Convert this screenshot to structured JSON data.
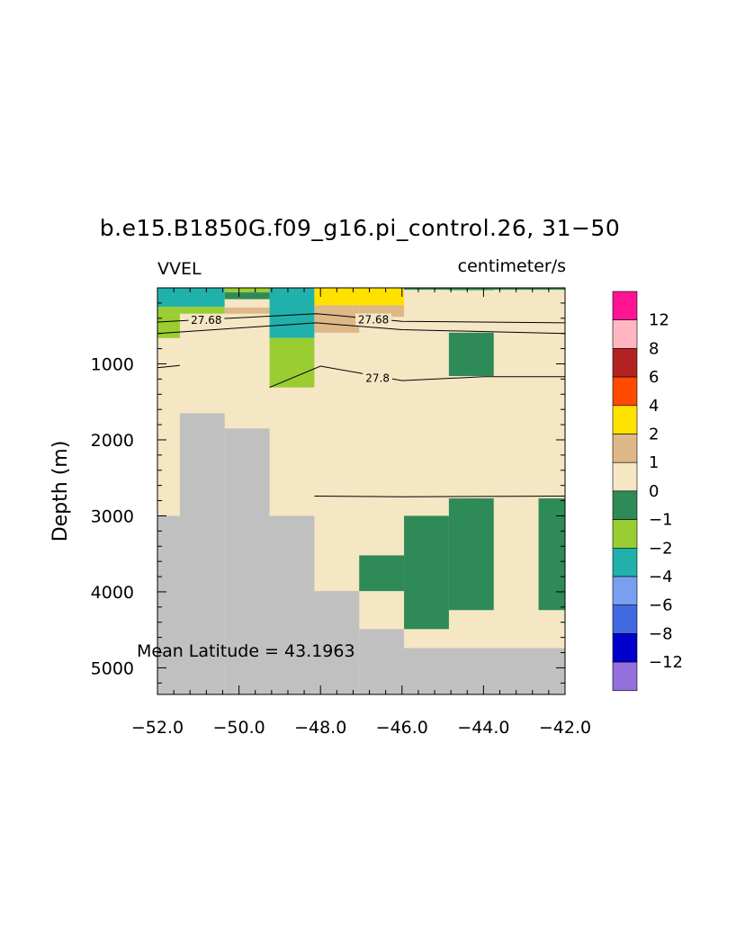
{
  "colors": {
    "0_1": "#F5E6C4",
    "1_2": "#DEB887",
    "2_4": "#FFE100",
    "4_6": "#FF4A00",
    "6_8": "#B22222",
    "8_12": "#FFB6C1",
    "12_up": "#FF1493",
    "m1_0": "#2E8B57",
    "m2_m1": "#9ACD32",
    "m4_m2": "#20B2AA",
    "m6_m4": "#7B9FF0",
    "m8_m6": "#4169E1",
    "m12_m8": "#0000CD",
    "below_m12": "#9370DB",
    "land": "#C0C0C0"
  },
  "chart_data": {
    "type": "heatmap",
    "title": "b.e15.B1850G.f09_g16.pi_control.26, 31−50",
    "left_label": "VVEL",
    "right_label": "centimeter/s",
    "xlabel": "",
    "ylabel": "Depth (m)",
    "xlim": [
      -52.0,
      -42.0
    ],
    "ylim": [
      5350,
      0
    ],
    "x_ticks": [
      "−52.0",
      "−50.0",
      "−48.0",
      "−46.0",
      "−44.0",
      "−42.0"
    ],
    "x_tick_values": [
      -52,
      -50,
      -48,
      -46,
      -44,
      -42
    ],
    "y_ticks": [
      "1000",
      "2000",
      "3000",
      "4000",
      "5000"
    ],
    "y_tick_values": [
      1000,
      2000,
      3000,
      4000,
      5000
    ],
    "background_color_key": "0_1",
    "land": [
      {
        "x": [
          -52.0,
          -51.45
        ],
        "y": [
          3000,
          5350
        ]
      },
      {
        "x": [
          -51.45,
          -50.35
        ],
        "y": [
          1650,
          5350
        ]
      },
      {
        "x": [
          -50.35,
          -49.25
        ],
        "y": [
          1850,
          5350
        ]
      },
      {
        "x": [
          -49.25,
          -48.15
        ],
        "y": [
          3000,
          5350
        ]
      },
      {
        "x": [
          -48.15,
          -47.05
        ],
        "y": [
          3990,
          5350
        ]
      },
      {
        "x": [
          -47.05,
          -45.95
        ],
        "y": [
          4490,
          5350
        ]
      },
      {
        "x": [
          -45.95,
          -42.0
        ],
        "y": [
          4740,
          5350
        ]
      }
    ],
    "cells": [
      {
        "x": [
          -52.0,
          -50.35
        ],
        "y": [
          0,
          250
        ],
        "c": "m4_m2"
      },
      {
        "x": [
          -52.0,
          -51.45
        ],
        "y": [
          250,
          360
        ],
        "c": "m2_m1"
      },
      {
        "x": [
          -51.45,
          -50.35
        ],
        "y": [
          250,
          340
        ],
        "c": "m2_m1"
      },
      {
        "x": [
          -52.0,
          -51.45
        ],
        "y": [
          360,
          660
        ],
        "c": "m2_m1"
      },
      {
        "x": [
          -50.35,
          -49.25
        ],
        "y": [
          0,
          60
        ],
        "c": "m2_m1"
      },
      {
        "x": [
          -50.35,
          -49.25
        ],
        "y": [
          60,
          150
        ],
        "c": "m1_0"
      },
      {
        "x": [
          -50.35,
          -49.25
        ],
        "y": [
          150,
          260
        ],
        "c": "0_1"
      },
      {
        "x": [
          -50.35,
          -49.25
        ],
        "y": [
          260,
          340
        ],
        "c": "1_2"
      },
      {
        "x": [
          -49.25,
          -48.15
        ],
        "y": [
          0,
          660
        ],
        "c": "m4_m2"
      },
      {
        "x": [
          -49.25,
          -48.15
        ],
        "y": [
          660,
          1310
        ],
        "c": "m2_m1"
      },
      {
        "x": [
          -48.15,
          -45.95
        ],
        "y": [
          0,
          230
        ],
        "c": "2_4"
      },
      {
        "x": [
          -48.15,
          -47.05
        ],
        "y": [
          230,
          590
        ],
        "c": "1_2"
      },
      {
        "x": [
          -47.05,
          -45.95
        ],
        "y": [
          230,
          380
        ],
        "c": "1_2"
      },
      {
        "x": [
          -45.95,
          -42.0
        ],
        "y": [
          0,
          25
        ],
        "c": "m1_0"
      },
      {
        "x": [
          -44.85,
          -43.75
        ],
        "y": [
          0,
          30
        ],
        "c": "m1_0"
      },
      {
        "x": [
          -44.85,
          -43.75
        ],
        "y": [
          590,
          1160
        ],
        "c": "m1_0"
      },
      {
        "x": [
          -44.85,
          -43.75
        ],
        "y": [
          2770,
          4240
        ],
        "c": "m1_0"
      },
      {
        "x": [
          -45.95,
          -44.85
        ],
        "y": [
          3000,
          4490
        ],
        "c": "m1_0"
      },
      {
        "x": [
          -47.05,
          -45.95
        ],
        "y": [
          3520,
          3990
        ],
        "c": "m1_0"
      },
      {
        "x": [
          -42.65,
          -42.0
        ],
        "y": [
          2770,
          4240
        ],
        "c": "m1_0"
      }
    ],
    "contours": [
      {
        "points": [
          [
            -52.0,
            450
          ],
          [
            -48.1,
            340
          ],
          [
            -46.0,
            440
          ],
          [
            -42.0,
            460
          ]
        ],
        "label": "27.68",
        "label_at": [
          [
            -50.8,
            425
          ],
          [
            -46.7,
            420
          ]
        ]
      },
      {
        "points": [
          [
            -52.0,
            600
          ],
          [
            -48.1,
            460
          ],
          [
            -46.0,
            550
          ],
          [
            -42.0,
            600
          ]
        ]
      },
      {
        "points": [
          [
            -52.0,
            1050
          ],
          [
            -51.45,
            1020
          ]
        ]
      },
      {
        "points": [
          [
            -49.25,
            1310
          ],
          [
            -48.0,
            1030
          ],
          [
            -46.0,
            1220
          ],
          [
            -44.0,
            1170
          ],
          [
            -42.0,
            1170
          ]
        ],
        "label": "27.8",
        "label_at": [
          [
            -46.6,
            1190
          ]
        ]
      },
      {
        "points": [
          [
            -48.15,
            2740
          ],
          [
            -46.0,
            2750
          ],
          [
            -42.0,
            2740
          ]
        ]
      }
    ],
    "annotation": "Mean Latitude = 43.1963",
    "legend": {
      "placement": "right",
      "labels": [
        "12",
        "8",
        "6",
        "4",
        "2",
        "1",
        "0",
        "−1",
        "−2",
        "−4",
        "−6",
        "−8",
        "−12"
      ],
      "boxes": [
        "12_up",
        "8_12",
        "6_8",
        "4_6",
        "2_4",
        "1_2",
        "0_1",
        "m1_0",
        "m2_m1",
        "m4_m2",
        "m6_m4",
        "m8_m6",
        "m12_m8",
        "below_m12"
      ]
    }
  }
}
